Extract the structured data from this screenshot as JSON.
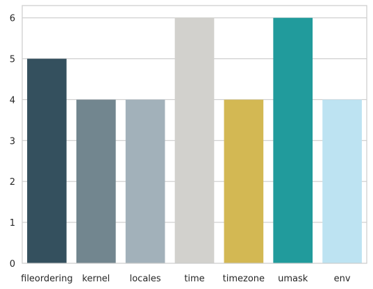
{
  "chart_data": {
    "type": "bar",
    "title": "",
    "xlabel": "",
    "ylabel": "",
    "categories": [
      "fileordering",
      "kernel",
      "locales",
      "time",
      "timezone",
      "umask",
      "env"
    ],
    "values": [
      5,
      4,
      4,
      6,
      4,
      6,
      4
    ],
    "colors": [
      "#34505e",
      "#72868f",
      "#a2b1ba",
      "#d2d1cd",
      "#d3b853",
      "#219b9c",
      "#bde3f2"
    ],
    "ylim": [
      0,
      6.3
    ],
    "yticks": [
      0,
      1,
      2,
      3,
      4,
      5,
      6
    ],
    "grid": true,
    "legend": "none"
  }
}
